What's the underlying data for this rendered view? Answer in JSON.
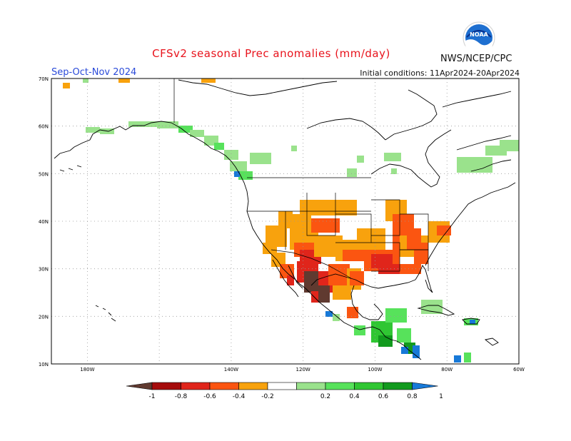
{
  "title": "CFSv2 seasonal Prec anomalies (mm/day)",
  "season": "Sep-Oct-Nov 2024",
  "initial_conditions": "Initial conditions: 11Apr2024-20Apr2024",
  "agency": "NWS/NCEP/CPC",
  "logo_text": "NOAA",
  "map": {
    "lon_range": [
      -190,
      -60
    ],
    "lat_range": [
      10,
      70
    ],
    "lat_labels": [
      "10N",
      "20N",
      "30N",
      "40N",
      "50N",
      "60N",
      "70N"
    ],
    "lon_labels": [
      "180W",
      "140W",
      "120W",
      "100W",
      "80W",
      "60W"
    ],
    "grid": true
  },
  "legend": {
    "tick_labels": [
      "-1",
      "-0.8",
      "-0.6",
      "-0.4",
      "-0.2",
      "0.2",
      "0.4",
      "0.6",
      "0.8",
      "1"
    ],
    "colors": [
      "#603a30",
      "#a50b0b",
      "#e0251b",
      "#fb5511",
      "#f8a20d",
      "#ffffff",
      "#9ae28c",
      "#57e25b",
      "#30c633",
      "#129a1e",
      "#1779d8"
    ]
  },
  "colors": {
    "dry_extreme": "#603a30",
    "dry_strong": "#a50b0b",
    "dry_red": "#e0251b",
    "dry_orange": "#fb5511",
    "dry_light": "#f8a20d",
    "wet_light": "#9ae28c",
    "wet_mid": "#57e25b",
    "wet_strong": "#30c633",
    "wet_deep": "#129a1e",
    "wet_extreme": "#1779d8"
  }
}
